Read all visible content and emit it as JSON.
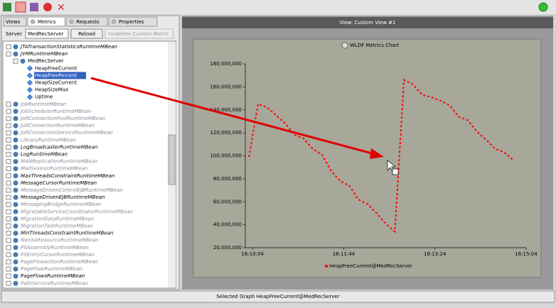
{
  "toolbar": {},
  "left_panel": {
    "tabs": [
      "Views",
      "Metrics",
      "Requests",
      "Properties"
    ],
    "server_label": "Server",
    "server_value": "MedRecServer",
    "reload": "Reload",
    "undelete": "Undelete Custom Metric",
    "tree": [
      {
        "label": "JTATransactionStatisticsRuntimeMBean",
        "level": 0,
        "enabled": true
      },
      {
        "label": "JVMRuntimeMBean",
        "level": 0,
        "enabled": true
      },
      {
        "label": "MedRecServer",
        "level": 1,
        "enabled": true
      },
      {
        "label": "HeapFreeCurrent",
        "level": 2,
        "enabled": true
      },
      {
        "label": "HeapFreePercent",
        "level": 2,
        "enabled": true,
        "selected": true
      },
      {
        "label": "HeapSizeCurrent",
        "level": 2,
        "enabled": true
      },
      {
        "label": "HeapSizeMax",
        "level": 2,
        "enabled": true
      },
      {
        "label": "Uptime",
        "level": 2,
        "enabled": true
      },
      {
        "label": "JobRuntimeMBean",
        "level": 0,
        "enabled": false
      },
      {
        "label": "JobSchedulerRuntimeMBean",
        "level": 0,
        "enabled": false
      },
      {
        "label": "JoltConnectionPoolRuntimeMBean",
        "level": 0,
        "enabled": false
      },
      {
        "label": "JoltConnectionRuntimeMBean",
        "level": 0,
        "enabled": false
      },
      {
        "label": "JoltConnectionServiceRuntimeMBean",
        "level": 0,
        "enabled": false
      },
      {
        "label": "LibraryRuntimeMBean",
        "level": 0,
        "enabled": false
      },
      {
        "label": "LogBroadcasterRuntimeMBean",
        "level": 0,
        "enabled": true
      },
      {
        "label": "LogRuntimeMBean",
        "level": 0,
        "enabled": true
      },
      {
        "label": "MANReplicationRuntimeMBean",
        "level": 0,
        "enabled": false
      },
      {
        "label": "MailSessionRuntimeMBean",
        "level": 0,
        "enabled": false
      },
      {
        "label": "MaxThreadsConstraintRuntimeMBean",
        "level": 0,
        "enabled": true
      },
      {
        "label": "MessageCursorRuntimeMBean",
        "level": 0,
        "enabled": true
      },
      {
        "label": "MessageDrivenControlEJBRuntimeMBean",
        "level": 0,
        "enabled": false
      },
      {
        "label": "MessageDrivenEJBRuntimeMBean",
        "level": 0,
        "enabled": true
      },
      {
        "label": "MessagingBridgeRuntimeMBean",
        "level": 0,
        "enabled": false
      },
      {
        "label": "MigratableServiceCoordinatorRuntimeMBean",
        "level": 0,
        "enabled": false
      },
      {
        "label": "MigrationDataRuntimeMBean",
        "level": 0,
        "enabled": false
      },
      {
        "label": "MigrationTaskRuntimeMBean",
        "level": 0,
        "enabled": false
      },
      {
        "label": "MinThreadsConstraintRuntimeMBean",
        "level": 0,
        "enabled": true
      },
      {
        "label": "NonXAResourceRuntimeMBean",
        "level": 0,
        "enabled": false
      },
      {
        "label": "PSAssemblyRuntimeMBean",
        "level": 0,
        "enabled": false
      },
      {
        "label": "PSEntryCursorRuntimeMBean",
        "level": 0,
        "enabled": false
      },
      {
        "label": "PageFlowActionRuntimeMBean",
        "level": 0,
        "enabled": false
      },
      {
        "label": "PageFlowRuntimeMBean",
        "level": 0,
        "enabled": false
      },
      {
        "label": "PageFlowsRuntimeMBean",
        "level": 0,
        "enabled": true
      },
      {
        "label": "PathServiceRuntimeMBean",
        "level": 0,
        "enabled": false
      }
    ]
  },
  "view_header": "View:  Custom View #1",
  "status": "Selected Graph HeapFreeCurrent@MedRecServer",
  "chart_data": {
    "type": "line",
    "title": "WLDF Metrics Chart",
    "x": [
      58200,
      58210,
      58220,
      58230,
      58240,
      58250,
      58260,
      58270,
      58280,
      58290,
      58300,
      58310,
      58320,
      58330,
      58340,
      58350,
      58360,
      58370,
      58380,
      58390,
      58400,
      58410,
      58420,
      58430,
      58440,
      58450,
      58460,
      58470,
      58480,
      58490
    ],
    "xlim": [
      58196,
      58504
    ],
    "xticks": [
      {
        "value": 58204,
        "label": "16:10:04"
      },
      {
        "value": 58304,
        "label": "16:11:44"
      },
      {
        "value": 58404,
        "label": "16:13:24"
      },
      {
        "value": 58504,
        "label": "16:15:04"
      }
    ],
    "ylim": [
      20000000,
      180000000
    ],
    "yticks": [
      {
        "value": 20000000,
        "label": "20,000,000"
      },
      {
        "value": 40000000,
        "label": "40,000,000"
      },
      {
        "value": 60000000,
        "label": "60,000,000"
      },
      {
        "value": 80000000,
        "label": "80,000,000"
      },
      {
        "value": 100000000,
        "label": "100,000,000"
      },
      {
        "value": 120000000,
        "label": "120,000,000"
      },
      {
        "value": 140000000,
        "label": "140,000,000"
      },
      {
        "value": 160000000,
        "label": "160,000,000"
      },
      {
        "value": 180000000,
        "label": "180,000,000"
      }
    ],
    "series": [
      {
        "name": "HeapFreeCurrent@MedRecServer",
        "color": "#ff0000",
        "values": [
          99000000,
          145000000,
          142000000,
          135000000,
          128000000,
          118000000,
          115000000,
          106000000,
          101000000,
          87000000,
          78000000,
          74000000,
          62000000,
          58000000,
          50000000,
          41000000,
          34000000,
          166000000,
          162000000,
          153000000,
          151000000,
          148000000,
          144000000,
          134000000,
          131000000,
          121000000,
          114000000,
          106000000,
          103000000,
          96000000
        ]
      }
    ]
  }
}
